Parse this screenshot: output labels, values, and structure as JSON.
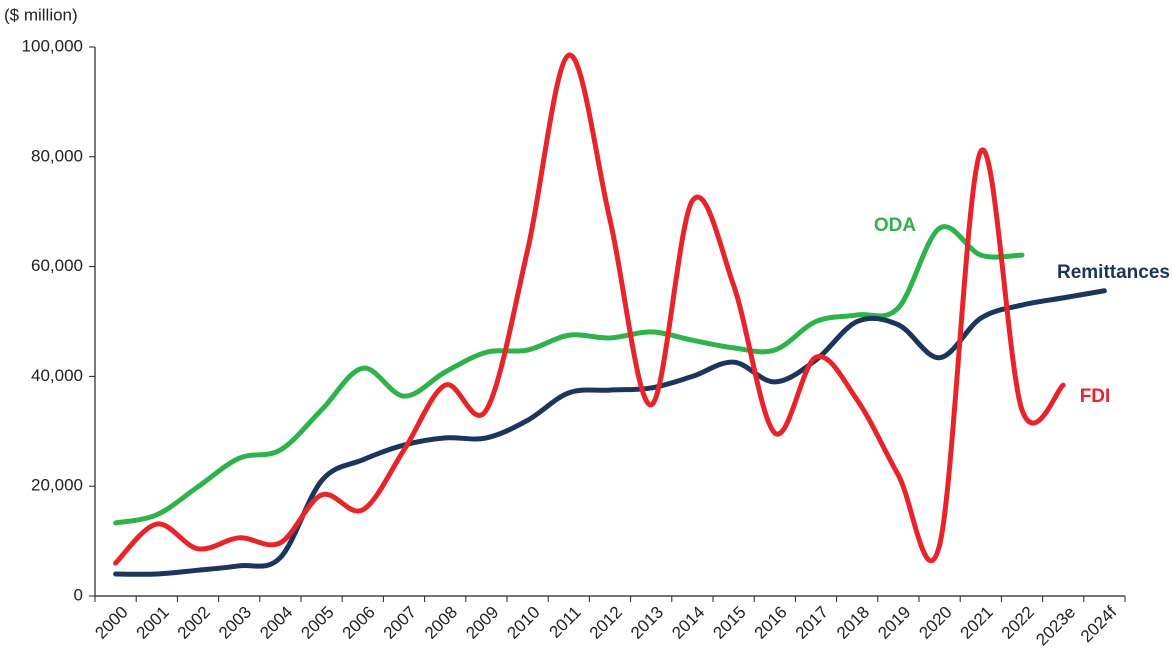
{
  "chart_data": {
    "type": "line",
    "y_label": "($ million)",
    "categories": [
      "2000",
      "2001",
      "2002",
      "2003",
      "2004",
      "2005",
      "2006",
      "2007",
      "2008",
      "2009",
      "2010",
      "2011",
      "2012",
      "2013",
      "2014",
      "2015",
      "2016",
      "2017",
      "2018",
      "2019",
      "2020",
      "2021",
      "2022",
      "2023e",
      "2024f"
    ],
    "series": [
      {
        "name": "ODA",
        "color": "#2db34a",
        "values": [
          13.3,
          14.8,
          19.9,
          25.1,
          26.6,
          33.9,
          41.5,
          36.4,
          40.8,
          44.4,
          44.8,
          47.5,
          47,
          48.1,
          46.6,
          45.2,
          44.8,
          50,
          51.2,
          52.5,
          67,
          62.1,
          62.1,
          null,
          null
        ]
      },
      {
        "name": "Remittances",
        "color": "#1b365d",
        "values": [
          4,
          4,
          4.7,
          5.5,
          7,
          21,
          24.8,
          27.5,
          28.8,
          28.8,
          32,
          37,
          37.5,
          37.9,
          40,
          42.6,
          39,
          43,
          50,
          49.4,
          43.4,
          50.6,
          53,
          54.3,
          55.6
        ]
      },
      {
        "name": "FDI",
        "color": "#e8242b",
        "values": [
          6,
          13.1,
          8.6,
          10.6,
          9.7,
          18.4,
          15.7,
          26.6,
          38.4,
          33.9,
          63,
          98.5,
          68.5,
          34.8,
          72,
          56.6,
          29.7,
          43.5,
          35.7,
          22,
          9.3,
          81,
          33.9,
          38.4,
          null
        ]
      }
    ],
    "ylim": [
      0,
      100
    ],
    "yticks": [
      0,
      {
        "value": 20,
        "label": "20,000"
      },
      {
        "value": 40,
        "label": "40,000"
      },
      {
        "value": 60,
        "label": "60,000"
      },
      {
        "value": 80,
        "label": "80,000"
      },
      {
        "value": 100,
        "label": "100,000"
      }
    ]
  }
}
